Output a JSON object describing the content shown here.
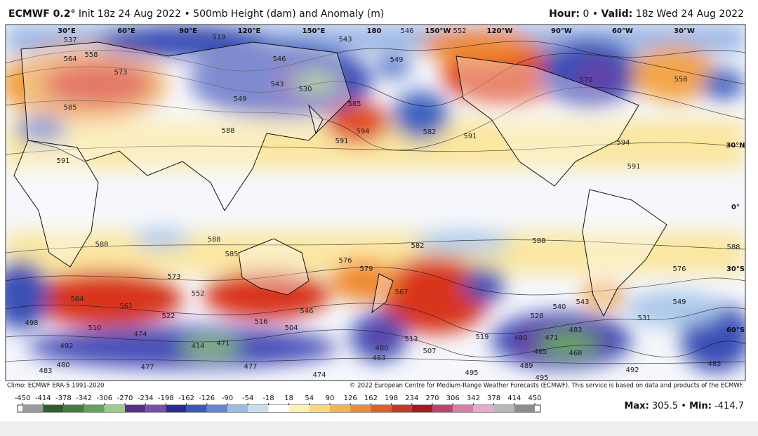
{
  "header": {
    "title": "ECMWF 0.2°",
    "init": "Init 18z 24 Aug 2022",
    "separator": "•",
    "product": "500mb Height (dam) and Anomaly (m)",
    "hour_label": "Hour:",
    "hour_value": "0",
    "valid_label": "Valid:",
    "valid_value": "18z Wed 24 Aug 2022"
  },
  "map": {
    "longitude_labels": [
      "30°E",
      "60°E",
      "90°E",
      "120°E",
      "150°E",
      "180",
      "150°W",
      "120°W",
      "90°W",
      "60°W",
      "30°W"
    ],
    "latitude_labels": [
      "30°N",
      "0°",
      "30°S",
      "60°S"
    ],
    "contour_labels": [
      "537",
      "519",
      "546",
      "543",
      "546",
      "552",
      "549",
      "564",
      "558",
      "573",
      "585",
      "549",
      "543",
      "530",
      "585",
      "594",
      "591",
      "582",
      "591",
      "570",
      "558",
      "594",
      "591",
      "588",
      "591",
      "588",
      "588",
      "585",
      "582",
      "576",
      "579",
      "588",
      "588",
      "576",
      "573",
      "564",
      "561",
      "552",
      "546",
      "567",
      "540",
      "543",
      "549",
      "528",
      "531",
      "516",
      "504",
      "522",
      "510",
      "498",
      "492",
      "474",
      "414",
      "471",
      "480",
      "483",
      "513",
      "507",
      "519",
      "483",
      "471",
      "480",
      "465",
      "468",
      "489",
      "495",
      "495",
      "492",
      "483",
      "480",
      "477",
      "477",
      "474",
      "483"
    ]
  },
  "footer": {
    "climo": "Climo: ECMWF ERA-5 1991-2020",
    "copyright": "© 2022 European Centre for Medium-Range Weather Forecasts (ECMWF). This service is based on data and products of the ECMWF."
  },
  "colorbar": {
    "ticks": [
      -450,
      -414,
      -378,
      -342,
      -306,
      -270,
      -234,
      -198,
      -162,
      -126,
      -90,
      -54,
      -18,
      18,
      54,
      90,
      126,
      162,
      198,
      234,
      270,
      306,
      342,
      378,
      414,
      450
    ]
  },
  "stats": {
    "max_label": "Max:",
    "max": "305.5",
    "separator": "•",
    "min_label": "Min:",
    "min": "-414.7"
  }
}
